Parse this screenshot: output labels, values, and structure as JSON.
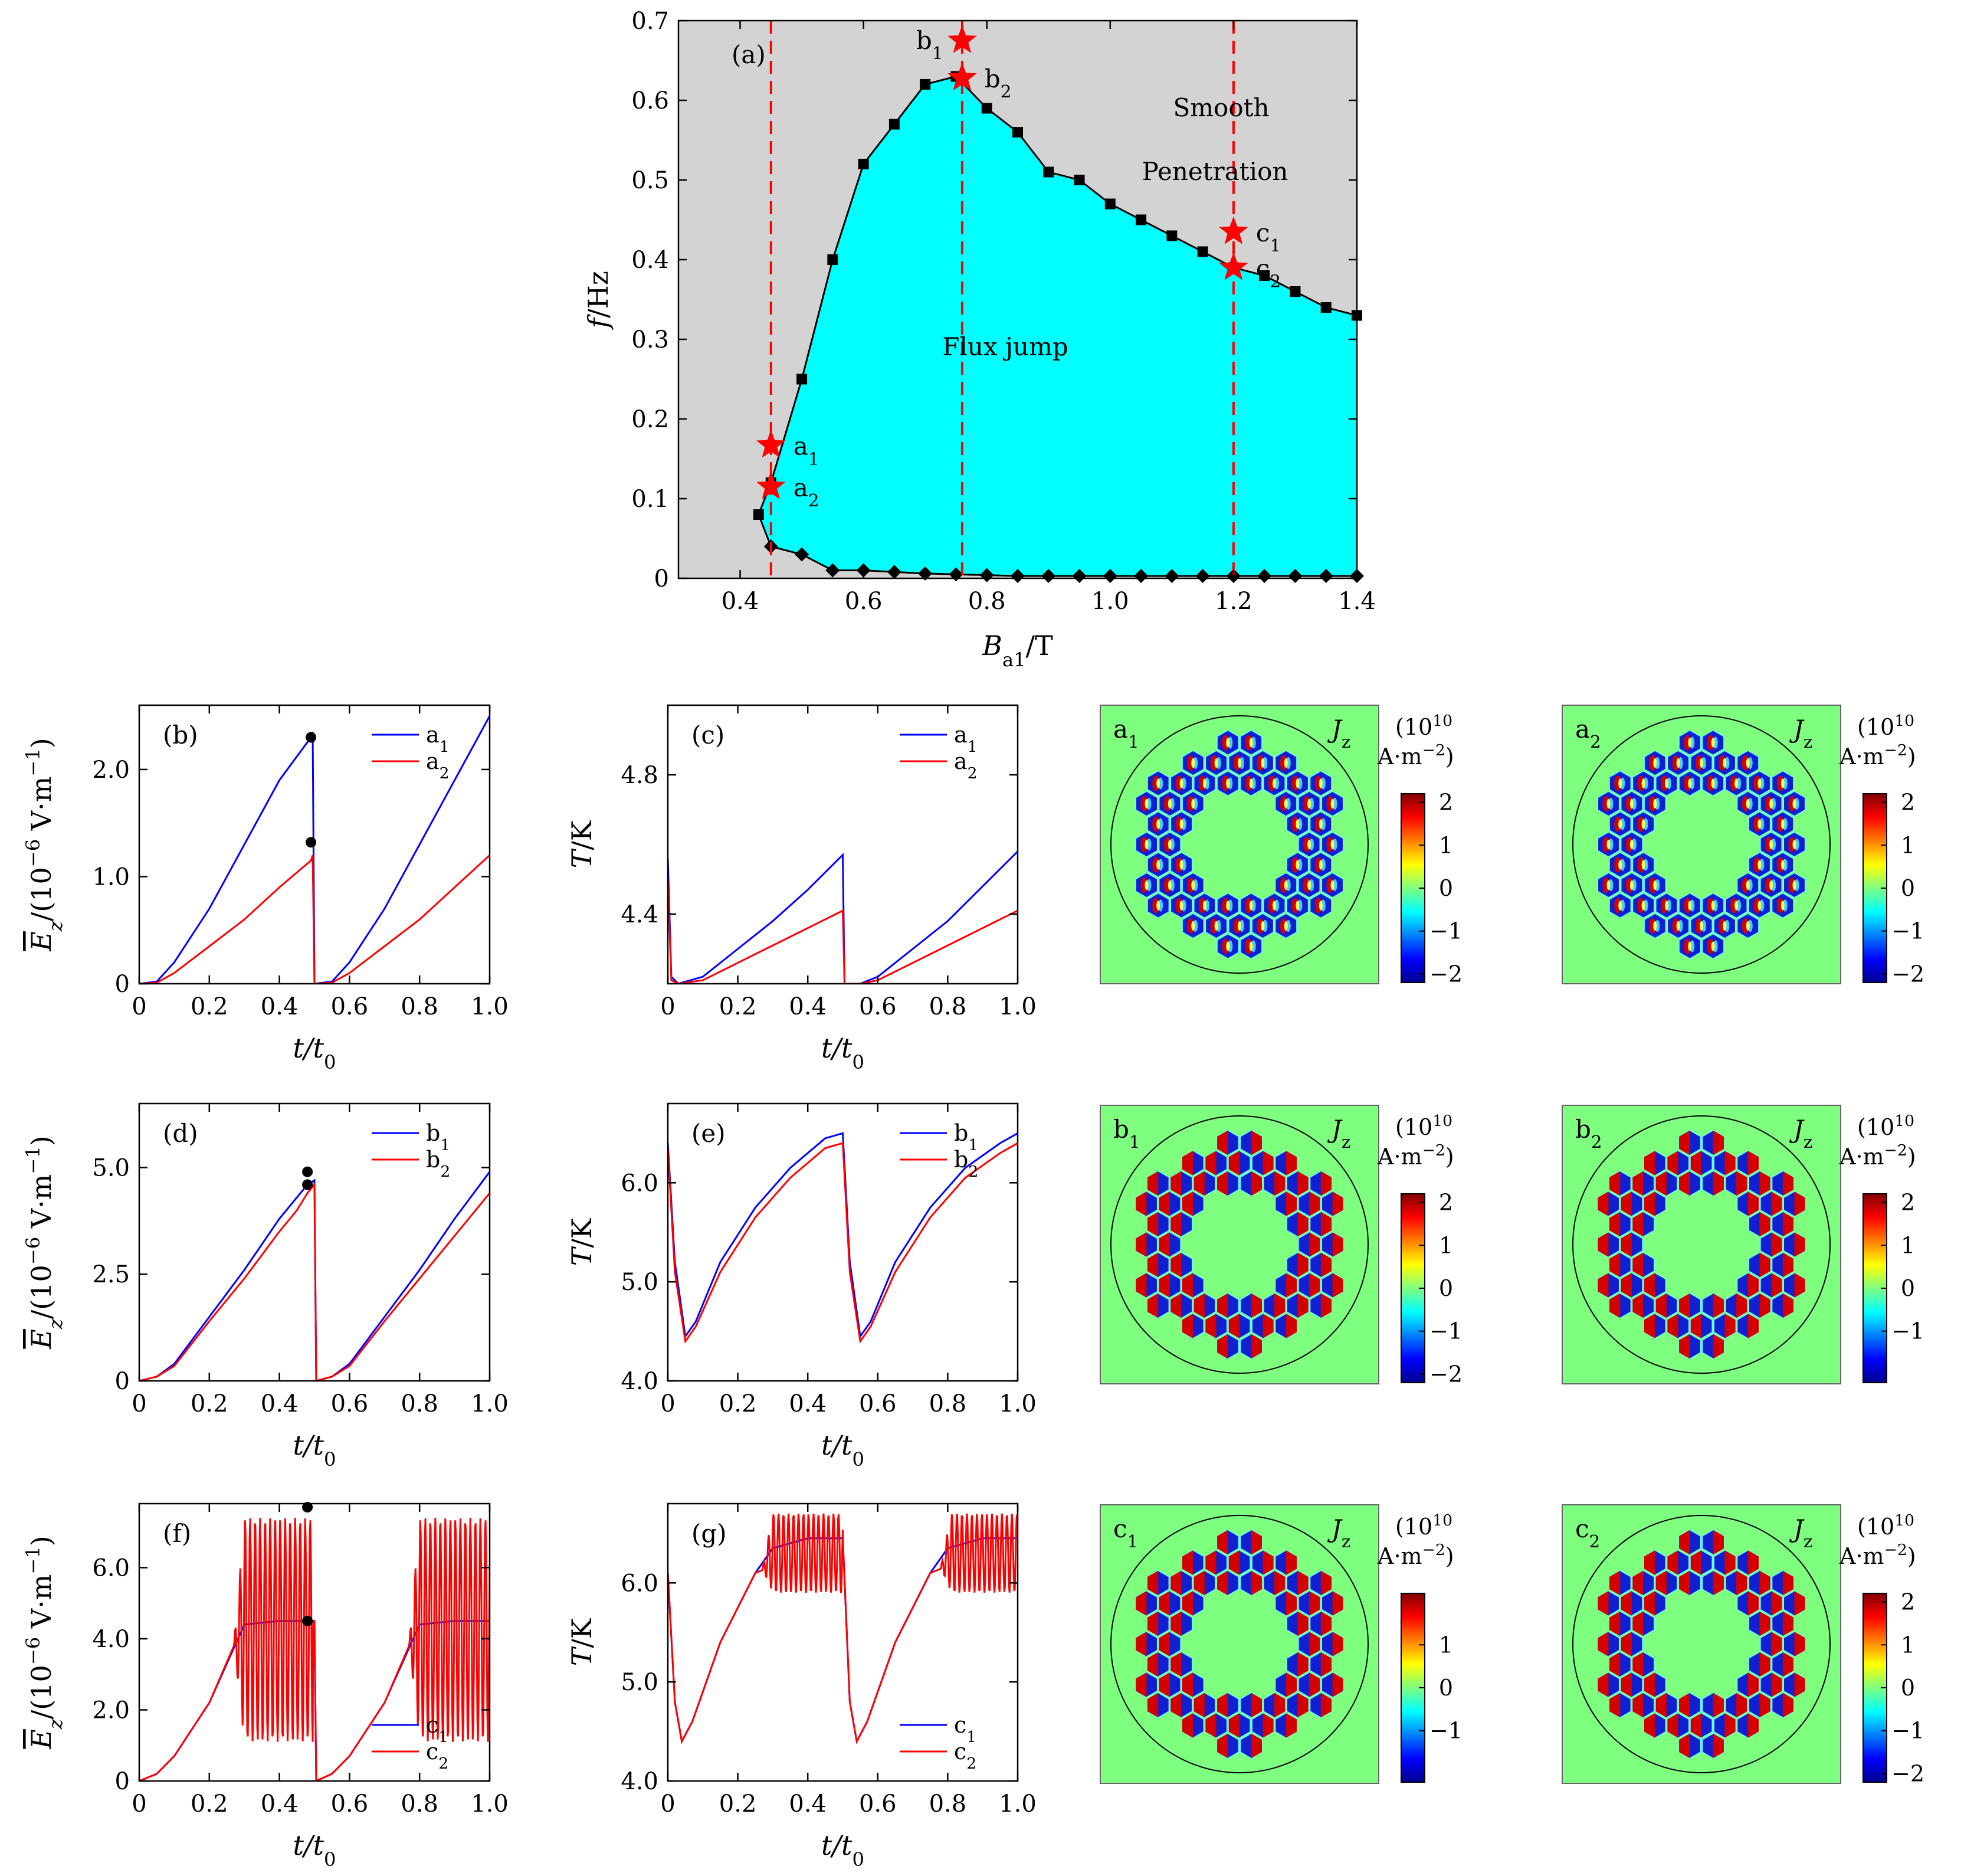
{
  "chart_data": [
    {
      "id": "a",
      "type": "area",
      "title": "(a)",
      "xlabel": "B_a1/T",
      "ylabel": "f/Hz",
      "xlim": [
        0.3,
        1.4
      ],
      "ylim": [
        0,
        0.7
      ],
      "xticks": [
        "0.4",
        "0.6",
        "0.8",
        "1.0",
        "1.2",
        "1.4"
      ],
      "yticks": [
        "0",
        "0.1",
        "0.2",
        "0.3",
        "0.4",
        "0.5",
        "0.6",
        "0.7"
      ],
      "regions": {
        "smooth": "Smooth",
        "penetration": "Penetration",
        "flux_jump": "Flux jump"
      },
      "upper_boundary": {
        "x": [
          0.43,
          0.45,
          0.5,
          0.55,
          0.6,
          0.65,
          0.7,
          0.75,
          0.8,
          0.85,
          0.9,
          0.95,
          1.0,
          1.05,
          1.1,
          1.15,
          1.2,
          1.25,
          1.3,
          1.35,
          1.4
        ],
        "y": [
          0.08,
          0.12,
          0.25,
          0.4,
          0.52,
          0.57,
          0.62,
          0.63,
          0.59,
          0.56,
          0.51,
          0.5,
          0.47,
          0.45,
          0.43,
          0.41,
          0.39,
          0.38,
          0.36,
          0.34,
          0.33
        ]
      },
      "lower_boundary": {
        "x": [
          0.43,
          0.45,
          0.5,
          0.55,
          0.6,
          0.65,
          0.7,
          0.75,
          0.8,
          0.85,
          0.9,
          0.95,
          1.0,
          1.05,
          1.1,
          1.15,
          1.2,
          1.25,
          1.3,
          1.35,
          1.4
        ],
        "y": [
          0.08,
          0.04,
          0.03,
          0.01,
          0.01,
          0.008,
          0.006,
          0.005,
          0.004,
          0.003,
          0.003,
          0.003,
          0.003,
          0.003,
          0.003,
          0.003,
          0.003,
          0.003,
          0.003,
          0.003,
          0.003
        ]
      },
      "vlines": [
        0.45,
        0.76,
        1.2
      ],
      "stars": [
        {
          "label": "a1",
          "x": 0.45,
          "y": 0.167
        },
        {
          "label": "a2",
          "x": 0.45,
          "y": 0.115
        },
        {
          "label": "b1",
          "x": 0.76,
          "y": 0.675
        },
        {
          "label": "b2",
          "x": 0.76,
          "y": 0.628
        },
        {
          "label": "c1",
          "x": 1.2,
          "y": 0.435
        },
        {
          "label": "c2",
          "x": 1.2,
          "y": 0.39
        }
      ],
      "colors": {
        "smooth": "#d3d3d3",
        "flux": "#00ffff",
        "line": "#000000",
        "vline": "#ff0000",
        "star": "#ff0000"
      }
    },
    {
      "id": "b",
      "type": "line",
      "title": "(b)",
      "xlabel": "t/t0",
      "ylabel": "E_z/(10^-6 V·m^-1)",
      "xlim": [
        0,
        1.0
      ],
      "ylim": [
        0,
        2.6
      ],
      "xticks": [
        "0",
        "0.2",
        "0.4",
        "0.6",
        "0.8",
        "1.0"
      ],
      "yticks": [
        "0",
        "1.0",
        "2.0"
      ],
      "legend": [
        "a1",
        "a2"
      ],
      "legend_position": "top-right",
      "series": [
        {
          "name": "a1",
          "color": "#0000ff",
          "x": [
            0,
            0.05,
            0.1,
            0.2,
            0.3,
            0.4,
            0.49,
            0.495,
            0.5,
            0.55,
            0.6,
            0.7,
            0.8,
            0.9,
            1.0
          ],
          "y": [
            0,
            0.02,
            0.2,
            0.7,
            1.3,
            1.9,
            2.3,
            2.35,
            0,
            0.02,
            0.2,
            0.7,
            1.3,
            1.9,
            2.5
          ]
        },
        {
          "name": "a2",
          "color": "#ff0000",
          "x": [
            0,
            0.05,
            0.1,
            0.2,
            0.3,
            0.4,
            0.49,
            0.495,
            0.5,
            0.55,
            0.6,
            0.7,
            0.8,
            0.9,
            1.0
          ],
          "y": [
            0,
            0.01,
            0.1,
            0.35,
            0.6,
            0.9,
            1.15,
            1.2,
            0,
            0.01,
            0.1,
            0.35,
            0.6,
            0.9,
            1.2
          ]
        }
      ],
      "markers": [
        {
          "x": 0.49,
          "y": 2.3
        },
        {
          "x": 0.49,
          "y": 1.32
        }
      ]
    },
    {
      "id": "c",
      "type": "line",
      "title": "(c)",
      "xlabel": "t/t0",
      "ylabel": "T/K",
      "xlim": [
        0,
        1.0
      ],
      "ylim": [
        4.2,
        5.0
      ],
      "xticks": [
        "0",
        "0.2",
        "0.4",
        "0.6",
        "0.8",
        "1.0"
      ],
      "yticks": [
        "4.4",
        "4.8"
      ],
      "legend": [
        "a1",
        "a2"
      ],
      "legend_position": "top-right",
      "series": [
        {
          "name": "a1",
          "color": "#0000ff",
          "x": [
            0,
            0.01,
            0.03,
            0.1,
            0.2,
            0.3,
            0.4,
            0.5,
            0.505,
            0.55,
            0.6,
            0.7,
            0.8,
            0.9,
            1.0
          ],
          "y": [
            4.56,
            4.22,
            4.2,
            4.22,
            4.3,
            4.38,
            4.47,
            4.57,
            4.2,
            4.2,
            4.22,
            4.3,
            4.38,
            4.48,
            4.58
          ]
        },
        {
          "name": "a2",
          "color": "#ff0000",
          "x": [
            0,
            0.01,
            0.03,
            0.1,
            0.2,
            0.3,
            0.4,
            0.5,
            0.505,
            0.55,
            0.6,
            0.7,
            0.8,
            0.9,
            1.0
          ],
          "y": [
            4.5,
            4.21,
            4.2,
            4.21,
            4.26,
            4.31,
            4.36,
            4.41,
            4.2,
            4.2,
            4.21,
            4.26,
            4.31,
            4.36,
            4.41
          ]
        }
      ]
    },
    {
      "id": "d",
      "type": "line",
      "title": "(d)",
      "xlabel": "t/t0",
      "ylabel": "E_z/(10^-6 V·m^-1)",
      "xlim": [
        0,
        1.0
      ],
      "ylim": [
        0,
        6.5
      ],
      "xticks": [
        "0",
        "0.2",
        "0.4",
        "0.6",
        "0.8",
        "1.0"
      ],
      "yticks": [
        "0",
        "2.5",
        "5.0"
      ],
      "legend": [
        "b1",
        "b2"
      ],
      "legend_position": "top-right",
      "series": [
        {
          "name": "b1",
          "color": "#0000ff",
          "x": [
            0,
            0.05,
            0.1,
            0.2,
            0.3,
            0.4,
            0.48,
            0.5,
            0.505,
            0.55,
            0.6,
            0.7,
            0.8,
            0.9,
            1.0
          ],
          "y": [
            0,
            0.1,
            0.4,
            1.5,
            2.6,
            3.8,
            4.6,
            4.7,
            0,
            0.1,
            0.4,
            1.5,
            2.6,
            3.8,
            4.9
          ]
        },
        {
          "name": "b2",
          "color": "#ff0000",
          "x": [
            0,
            0.05,
            0.1,
            0.2,
            0.3,
            0.4,
            0.45,
            0.48,
            0.5,
            0.505,
            0.55,
            0.6,
            0.7,
            0.8,
            0.9,
            1.0
          ],
          "y": [
            0,
            0.1,
            0.35,
            1.4,
            2.4,
            3.5,
            4.0,
            4.4,
            4.6,
            0,
            0.1,
            0.35,
            1.4,
            2.4,
            3.4,
            4.4
          ]
        }
      ],
      "markers": [
        {
          "x": 0.48,
          "y": 4.9
        },
        {
          "x": 0.48,
          "y": 4.6
        }
      ]
    },
    {
      "id": "e",
      "type": "line",
      "title": "(e)",
      "xlabel": "t/t0",
      "ylabel": "T/K",
      "xlim": [
        0,
        1.0
      ],
      "ylim": [
        4.0,
        6.8
      ],
      "xticks": [
        "0",
        "0.2",
        "0.4",
        "0.6",
        "0.8",
        "1.0"
      ],
      "yticks": [
        "4.0",
        "5.0",
        "6.0"
      ],
      "legend": [
        "b1",
        "b2"
      ],
      "legend_position": "top-right",
      "series": [
        {
          "name": "b1",
          "color": "#0000ff",
          "x": [
            0,
            0.02,
            0.05,
            0.08,
            0.15,
            0.25,
            0.35,
            0.45,
            0.5,
            0.52,
            0.55,
            0.58,
            0.65,
            0.75,
            0.85,
            0.95,
            1.0
          ],
          "y": [
            6.4,
            5.2,
            4.45,
            4.6,
            5.2,
            5.75,
            6.15,
            6.45,
            6.5,
            5.2,
            4.45,
            4.6,
            5.2,
            5.75,
            6.15,
            6.4,
            6.5
          ]
        },
        {
          "name": "b2",
          "color": "#ff0000",
          "x": [
            0,
            0.02,
            0.05,
            0.08,
            0.15,
            0.25,
            0.35,
            0.45,
            0.5,
            0.52,
            0.55,
            0.58,
            0.65,
            0.75,
            0.85,
            0.95,
            1.0
          ],
          "y": [
            6.35,
            5.1,
            4.4,
            4.55,
            5.1,
            5.65,
            6.05,
            6.35,
            6.4,
            5.1,
            4.4,
            4.55,
            5.1,
            5.65,
            6.05,
            6.3,
            6.4
          ]
        }
      ]
    },
    {
      "id": "f",
      "type": "line",
      "title": "(f)",
      "xlabel": "t/t0",
      "ylabel": "E_z/(10^-6 V·m^-1)",
      "xlim": [
        0,
        1.0
      ],
      "ylim": [
        0,
        7.8
      ],
      "xticks": [
        "0",
        "0.2",
        "0.4",
        "0.6",
        "0.8",
        "1.0"
      ],
      "yticks": [
        "0",
        "2.0",
        "4.0",
        "6.0"
      ],
      "legend": [
        "c1",
        "c2"
      ],
      "legend_position": "bottom-right",
      "series": [
        {
          "name": "c1",
          "color": "#0000ff",
          "x": [
            0,
            0.05,
            0.1,
            0.2,
            0.3,
            0.4,
            0.5,
            0.505,
            0.55,
            0.6,
            0.7,
            0.8,
            0.9,
            1.0
          ],
          "y": [
            0,
            0.2,
            0.7,
            2.2,
            4.4,
            4.5,
            4.5,
            0,
            0.2,
            0.7,
            2.2,
            4.4,
            4.5,
            4.5
          ]
        },
        {
          "name": "c2",
          "color": "#ff0000",
          "oscillation": {
            "ranges": [
              [
                0.27,
                0.495
              ],
              [
                0.77,
                1.0
              ]
            ],
            "min": 1.1,
            "max": 7.4
          },
          "x": [
            0,
            0.05,
            0.1,
            0.2,
            0.27,
            0.5,
            0.505,
            0.55,
            0.6,
            0.7,
            0.77,
            1.0
          ],
          "y": [
            0,
            0.2,
            0.7,
            2.2,
            3.8,
            4.5,
            0,
            0.2,
            0.7,
            2.2,
            3.8,
            4.5
          ]
        }
      ],
      "markers": [
        {
          "x": 0.48,
          "y": 7.7
        },
        {
          "x": 0.48,
          "y": 4.5
        }
      ]
    },
    {
      "id": "g",
      "type": "line",
      "title": "(g)",
      "xlabel": "t/t0",
      "ylabel": "T/K",
      "xlim": [
        0,
        1.0
      ],
      "ylim": [
        4.0,
        6.8
      ],
      "xticks": [
        "0",
        "0.2",
        "0.4",
        "0.6",
        "0.8",
        "1.0"
      ],
      "yticks": [
        "4.0",
        "5.0",
        "6.0"
      ],
      "legend": [
        "c1",
        "c2"
      ],
      "legend_position": "bottom-right",
      "series": [
        {
          "name": "c1",
          "color": "#0000ff",
          "x": [
            0,
            0.02,
            0.04,
            0.07,
            0.15,
            0.25,
            0.3,
            0.4,
            0.5,
            0.52,
            0.54,
            0.57,
            0.65,
            0.75,
            0.8,
            0.9,
            1.0
          ],
          "y": [
            6.1,
            4.8,
            4.4,
            4.6,
            5.4,
            6.1,
            6.35,
            6.45,
            6.45,
            4.8,
            4.4,
            4.6,
            5.4,
            6.1,
            6.35,
            6.45,
            6.45
          ]
        },
        {
          "name": "c2",
          "color": "#ff0000",
          "oscillation": {
            "ranges": [
              [
                0.27,
                0.5
              ],
              [
                0.78,
                1.0
              ]
            ],
            "min": 5.9,
            "max": 6.7
          },
          "x": [
            0,
            0.02,
            0.04,
            0.07,
            0.15,
            0.25,
            0.5,
            0.52,
            0.54,
            0.57,
            0.65,
            0.75,
            1.0
          ],
          "y": [
            6.1,
            4.8,
            4.4,
            4.6,
            5.4,
            6.1,
            6.45,
            4.8,
            4.4,
            4.6,
            5.4,
            6.1,
            6.45
          ]
        }
      ]
    }
  ],
  "maps": [
    {
      "label": "a1",
      "field": "Jz",
      "unit": [
        "(10",
        "10",
        "A·m",
        "−2",
        ")"
      ],
      "cb_ticks": [
        "2",
        "1",
        "0",
        "−1",
        "−2"
      ],
      "pattern": "inner"
    },
    {
      "label": "a2",
      "field": "Jz",
      "unit": [
        "(10",
        "10",
        "A·m",
        "−2",
        ")"
      ],
      "cb_ticks": [
        "2",
        "1",
        "0",
        "−1",
        "−2"
      ],
      "pattern": "inner"
    },
    {
      "label": "b1",
      "field": "Jz",
      "unit": [
        "(10",
        "10",
        "A·m",
        "−2",
        ")"
      ],
      "cb_ticks": [
        "2",
        "1",
        "0",
        "−1",
        "−2"
      ],
      "pattern": "half"
    },
    {
      "label": "b2",
      "field": "Jz",
      "unit": [
        "(10",
        "10",
        "A·m",
        "−2",
        ")"
      ],
      "cb_ticks": [
        "2",
        "1",
        "0",
        "−1"
      ],
      "pattern": "half"
    },
    {
      "label": "c1",
      "field": "Jz",
      "unit": [
        "(10",
        "10",
        "A·m",
        "−2",
        ")"
      ],
      "cb_ticks": [
        "1",
        "0",
        "−1"
      ],
      "pattern": "half"
    },
    {
      "label": "c2",
      "field": "Jz",
      "unit": [
        "(10",
        "10",
        "A·m",
        "−2",
        ")"
      ],
      "cb_ticks": [
        "2",
        "1",
        "0",
        "−1",
        "−2"
      ],
      "pattern": "half"
    }
  ],
  "colors": {
    "map_bg": "#7fff7f",
    "map_red": "#d40000",
    "map_blue": "#1020d0",
    "map_cyan": "#3fd0ff"
  }
}
